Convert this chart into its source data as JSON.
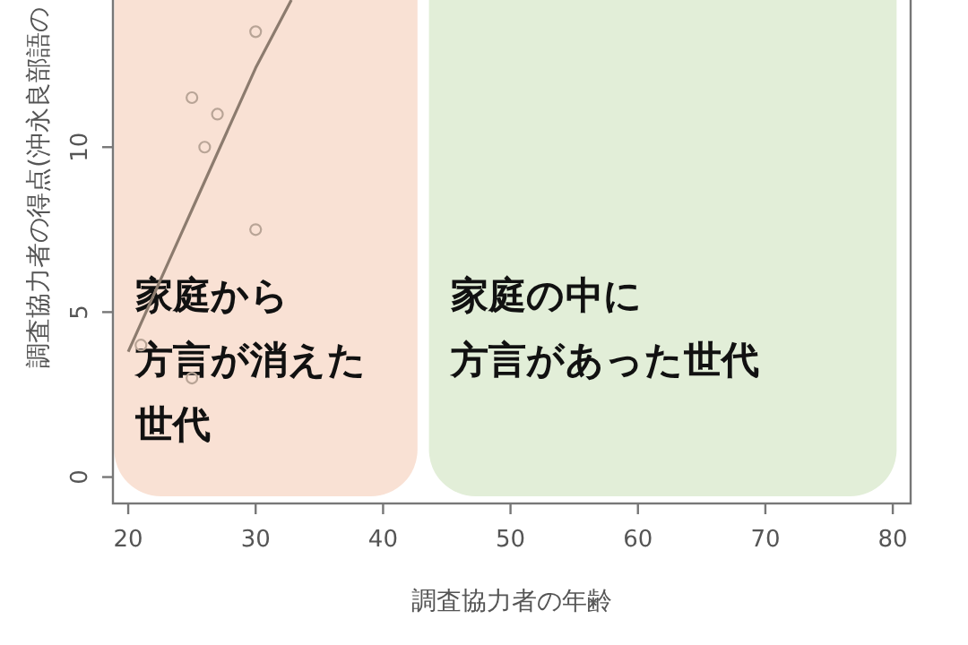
{
  "chart_data": {
    "type": "scatter",
    "xlabel": "調査協力者の年齢",
    "ylabel": "調査協力者の得点(沖永良部語の",
    "xlim": [
      18.8,
      81.4
    ],
    "ylim": [
      -0.8,
      14.46
    ],
    "xticks": [
      20,
      30,
      40,
      50,
      60,
      70,
      80
    ],
    "yticks": [
      0,
      5,
      10
    ],
    "grid": false,
    "series": [
      {
        "marker": "circle",
        "color": "#b8a496",
        "x": [
          21,
          25,
          25,
          26,
          27,
          30,
          30
        ],
        "values": [
          4,
          3,
          11.5,
          10,
          11,
          13.5,
          7.5
        ]
      },
      {
        "type": "line",
        "color": "#8c7b6e",
        "x": [
          20,
          25,
          30,
          32.8
        ],
        "values": [
          3.8,
          8.1,
          12.4,
          14.46
        ]
      }
    ],
    "bands": [
      {
        "axis": "x",
        "from": 18.9,
        "to": 42.7,
        "label": "家庭から方言が消えた世代",
        "color": "#f9e1d4"
      },
      {
        "axis": "x",
        "from": 43.6,
        "to": 80.3,
        "label": "家庭の中に方言があった世代",
        "color": "#e2eed8"
      }
    ]
  }
}
